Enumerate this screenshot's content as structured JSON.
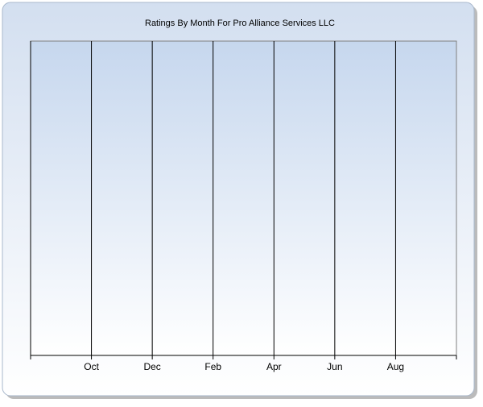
{
  "chart_data": {
    "type": "line",
    "title": "Ratings By Month For Pro Alliance Services LLC",
    "categories": [
      null,
      "Oct",
      "Dec",
      "Feb",
      "Apr",
      "Jun",
      "Aug",
      null
    ],
    "grid": true
  }
}
